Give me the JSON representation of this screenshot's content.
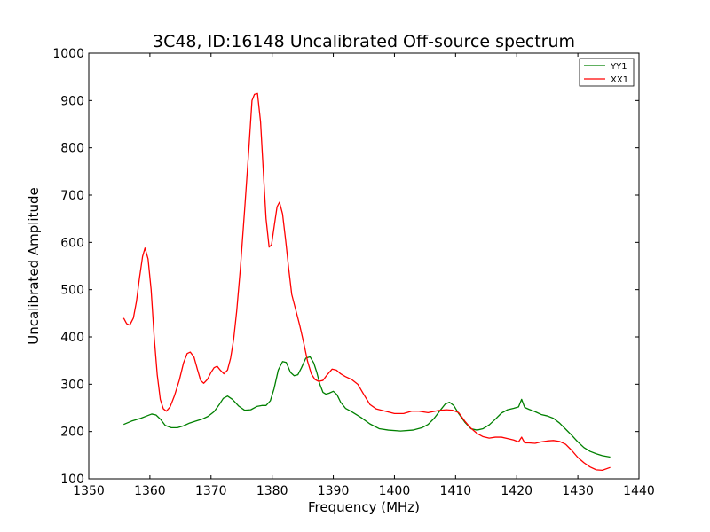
{
  "chart_data": {
    "type": "line",
    "title": "3C48, ID:16148 Uncalibrated Off-source spectrum",
    "xlabel": "Frequency (MHz)",
    "ylabel": "Uncalibrated Amplitude",
    "xlim": [
      1350,
      1440
    ],
    "ylim": [
      100,
      1000
    ],
    "xticks": [
      1350,
      1360,
      1370,
      1380,
      1390,
      1400,
      1410,
      1420,
      1430,
      1440
    ],
    "yticks": [
      100,
      200,
      300,
      400,
      500,
      600,
      700,
      800,
      900,
      1000
    ],
    "grid": false,
    "legend_position": "top-right",
    "series": [
      {
        "name": "YY1",
        "color": "#008000",
        "x": [
          1355.7,
          1357,
          1358.5,
          1359.5,
          1360.3,
          1361,
          1361.8,
          1362.5,
          1363.5,
          1364.5,
          1365.5,
          1366.5,
          1367.5,
          1368.5,
          1369.5,
          1370.5,
          1371.3,
          1372,
          1372.7,
          1373.5,
          1374.5,
          1375.5,
          1376.5,
          1377.5,
          1378.3,
          1379,
          1379.7,
          1380.3,
          1381,
          1381.7,
          1382.3,
          1383,
          1383.6,
          1384.2,
          1384.8,
          1385.5,
          1386.2,
          1386.8,
          1387.3,
          1387.8,
          1388.3,
          1388.8,
          1389.3,
          1390,
          1390.6,
          1391.2,
          1392,
          1393,
          1394.5,
          1396,
          1397.5,
          1399,
          1401,
          1403,
          1404.5,
          1405.5,
          1406.5,
          1407.5,
          1408.3,
          1409,
          1409.7,
          1410.5,
          1411.5,
          1412.5,
          1413.5,
          1414.5,
          1415.5,
          1416.5,
          1417.5,
          1418.5,
          1419.5,
          1420.3,
          1420.8,
          1421.3,
          1422,
          1423,
          1424,
          1425,
          1426,
          1427,
          1428,
          1429,
          1430,
          1431,
          1432,
          1433,
          1434,
          1435.3
        ],
        "y": [
          215,
          222,
          228,
          233,
          237,
          235,
          225,
          213,
          208,
          208,
          212,
          218,
          222,
          226,
          232,
          242,
          256,
          270,
          275,
          268,
          254,
          245,
          246,
          253,
          255,
          255,
          265,
          290,
          330,
          348,
          346,
          325,
          318,
          320,
          335,
          355,
          358,
          345,
          325,
          300,
          283,
          279,
          281,
          285,
          278,
          262,
          249,
          242,
          230,
          216,
          206,
          203,
          201,
          203,
          208,
          215,
          228,
          245,
          258,
          262,
          255,
          238,
          220,
          206,
          203,
          206,
          214,
          226,
          239,
          246,
          249,
          252,
          268,
          251,
          247,
          242,
          236,
          233,
          228,
          218,
          205,
          192,
          178,
          166,
          158,
          153,
          149,
          146
        ]
      },
      {
        "name": "XX1",
        "color": "#ff0000",
        "x": [
          1355.7,
          1356.2,
          1356.7,
          1357.3,
          1357.8,
          1358.3,
          1358.8,
          1359.2,
          1359.7,
          1360.2,
          1360.7,
          1361.2,
          1361.7,
          1362.2,
          1362.7,
          1363.3,
          1364,
          1364.8,
          1365.5,
          1366.1,
          1366.6,
          1367.2,
          1367.8,
          1368.3,
          1368.8,
          1369.4,
          1370,
          1370.5,
          1371,
          1371.5,
          1372.1,
          1372.7,
          1373.2,
          1373.7,
          1374.2,
          1374.8,
          1375.5,
          1376.2,
          1376.7,
          1377.1,
          1377.6,
          1378.1,
          1378.6,
          1379,
          1379.5,
          1379.9,
          1380.4,
          1380.8,
          1381.2,
          1381.7,
          1382.2,
          1382.7,
          1383.2,
          1383.8,
          1384.5,
          1385.2,
          1385.8,
          1386.4,
          1387,
          1387.6,
          1388.3,
          1389,
          1389.8,
          1390.5,
          1391.2,
          1392,
          1393,
          1394,
          1395,
          1396,
          1397,
          1398.5,
          1400,
          1401.5,
          1402.8,
          1404,
          1405.5,
          1407,
          1408.5,
          1409.5,
          1410.5,
          1411.5,
          1412.5,
          1413.5,
          1414.5,
          1415.5,
          1416.5,
          1417.5,
          1418.5,
          1419.5,
          1420.3,
          1420.8,
          1421.3,
          1422,
          1423,
          1424,
          1425,
          1426,
          1427,
          1428,
          1429,
          1430,
          1431,
          1432,
          1433,
          1434,
          1435.3
        ],
        "y": [
          440,
          428,
          425,
          440,
          475,
          525,
          570,
          588,
          565,
          500,
          400,
          320,
          268,
          248,
          243,
          252,
          275,
          308,
          345,
          365,
          368,
          358,
          330,
          308,
          302,
          310,
          325,
          335,
          338,
          330,
          322,
          330,
          355,
          395,
          455,
          545,
          670,
          800,
          900,
          913,
          915,
          855,
          740,
          650,
          590,
          595,
          640,
          675,
          685,
          660,
          605,
          545,
          490,
          460,
          425,
          385,
          348,
          322,
          310,
          306,
          308,
          320,
          332,
          330,
          322,
          316,
          310,
          300,
          278,
          257,
          248,
          243,
          238,
          238,
          243,
          243,
          240,
          244,
          246,
          245,
          240,
          222,
          207,
          196,
          189,
          186,
          188,
          188,
          185,
          182,
          178,
          188,
          176,
          176,
          175,
          178,
          180,
          181,
          179,
          173,
          160,
          145,
          134,
          125,
          119,
          118,
          124
        ]
      }
    ]
  }
}
